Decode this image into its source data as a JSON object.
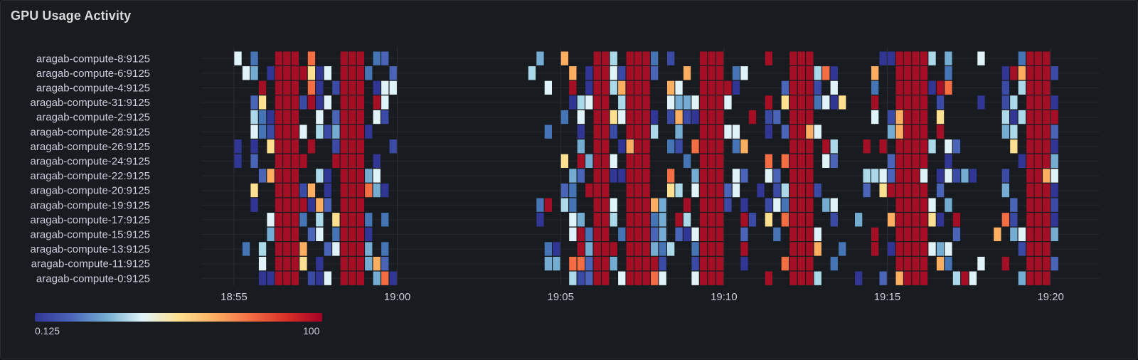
{
  "panel": {
    "title": "GPU Usage Activity"
  },
  "chart_data": {
    "type": "heatmap",
    "title": "GPU Usage Activity",
    "colorscale": {
      "min_label": "0.125",
      "max_label": "100",
      "min": 0.125,
      "max": 100,
      "colors": [
        "#313695",
        "#4a64b8",
        "#74add1",
        "#e0f3f8",
        "#fee090",
        "#fdae61",
        "#f46d43",
        "#d73027",
        "#a50026"
      ]
    },
    "y_categories": [
      "aragab-compute-8:9125",
      "aragab-compute-6:9125",
      "aragab-compute-4:9125",
      "aragab-compute-31:9125",
      "aragab-compute-2:9125",
      "aragab-compute-28:9125",
      "aragab-compute-26:9125",
      "aragab-compute-24:9125",
      "aragab-compute-22:9125",
      "aragab-compute-20:9125",
      "aragab-compute-19:9125",
      "aragab-compute-17:9125",
      "aragab-compute-15:9125",
      "aragab-compute-13:9125",
      "aragab-compute-11:9125",
      "aragab-compute-0:9125"
    ],
    "x_ticks": [
      "18:55",
      "19:00",
      "19:05",
      "19:10",
      "19:15",
      "19:20"
    ],
    "x_range": [
      "18:54:00",
      "19:21:30"
    ],
    "bucket_seconds": 15,
    "dense_bands": [
      [
        "18:56:15",
        "18:56:45"
      ],
      [
        "18:58:15",
        "18:58:45"
      ],
      [
        "19:06:00",
        "19:06:15"
      ],
      [
        "19:07:00",
        "19:07:30"
      ],
      [
        "19:09:15",
        "19:09:45"
      ],
      [
        "19:12:00",
        "19:12:30"
      ],
      [
        "19:15:15",
        "19:16:00"
      ],
      [
        "19:19:15",
        "19:19:45"
      ]
    ],
    "active_ranges": [
      [
        "18:55:00",
        "18:59:45"
      ],
      [
        "19:03:45",
        "19:20:00"
      ]
    ]
  }
}
